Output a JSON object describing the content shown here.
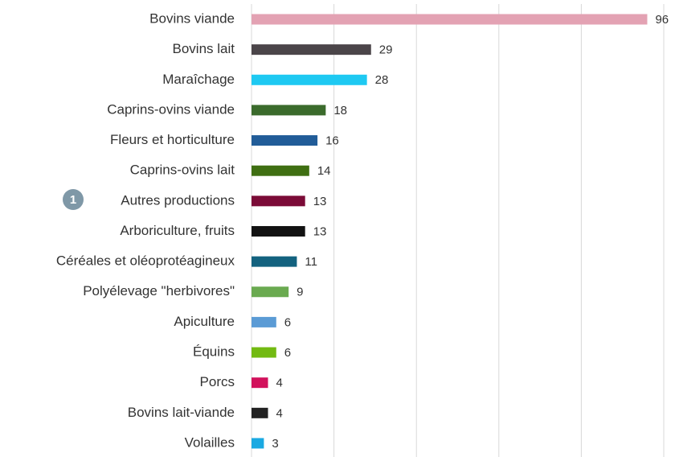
{
  "chart_data": {
    "type": "hbar",
    "categories": [
      "Bovins viande",
      "Bovins lait",
      "Maraîchage",
      "Caprins-ovins viande",
      "Fleurs et horticulture",
      "Caprins-ovins lait",
      "Autres productions",
      "Arboriculture, fruits",
      "Céréales et oléoprotéagineux",
      "Polyélevage \"herbivores\"",
      "Apiculture",
      "Équins",
      "Porcs",
      "Bovins lait-viande",
      "Volailles"
    ],
    "values": [
      96,
      29,
      28,
      18,
      16,
      14,
      13,
      13,
      11,
      9,
      6,
      6,
      4,
      4,
      3
    ],
    "colors": [
      "#e3a2b3",
      "#4b4549",
      "#1ec9f2",
      "#3b6b2c",
      "#215c98",
      "#3f6f12",
      "#7b0b37",
      "#121212",
      "#13627f",
      "#6aaa50",
      "#5b9bd5",
      "#72ba12",
      "#d2115c",
      "#222222",
      "#1aa9e2"
    ],
    "xlim": [
      0,
      100
    ],
    "xticks": [
      0,
      20,
      40,
      60,
      80,
      100
    ],
    "grid": true,
    "annotation": "1"
  }
}
